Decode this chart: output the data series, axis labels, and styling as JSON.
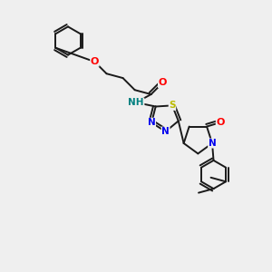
{
  "background_color": "#efefef",
  "bond_color": "#1a1a1a",
  "atom_colors": {
    "O": "#ff0000",
    "N": "#0000ee",
    "S": "#bbbb00",
    "NH": "#008080",
    "C": "#1a1a1a"
  },
  "font_size_atom": 7.5,
  "line_width": 1.4,
  "figsize": [
    3.0,
    3.0
  ],
  "dpi": 100,
  "xlim": [
    0,
    10
  ],
  "ylim": [
    0,
    10
  ]
}
